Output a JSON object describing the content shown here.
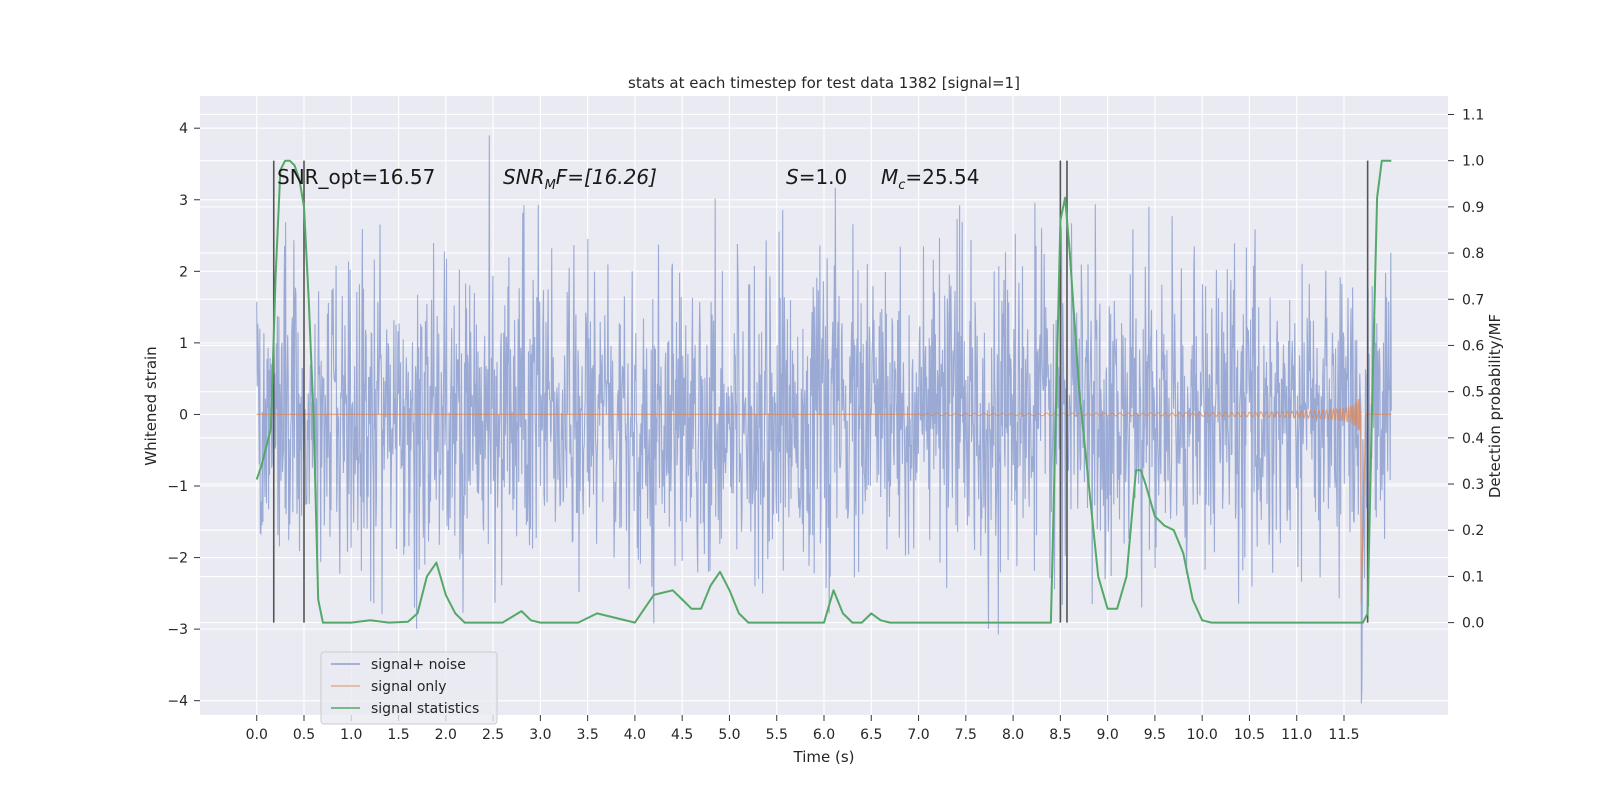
{
  "chart_data": {
    "type": "line",
    "title": "stats at each timestep for test data 1382 [signal=1]",
    "xlabel": "Time (s)",
    "ylabel": "Whitened strain",
    "y2label": "Detection probability/MF",
    "xlim": [
      -0.6,
      12.6
    ],
    "ylim": [
      -4.2,
      4.45
    ],
    "y2lim": [
      -0.2,
      1.14
    ],
    "grid": true,
    "xticks": [
      "0.0",
      "0.5",
      "1.0",
      "1.5",
      "2.0",
      "2.5",
      "3.0",
      "3.5",
      "4.0",
      "4.5",
      "5.0",
      "5.5",
      "6.0",
      "6.5",
      "7.0",
      "7.5",
      "8.0",
      "8.5",
      "9.0",
      "9.5",
      "10.0",
      "10.5",
      "11.0",
      "11.5"
    ],
    "yticks": [
      "4",
      "3",
      "2",
      "1",
      "0",
      "−1",
      "−2",
      "−3",
      "−4"
    ],
    "y2ticks": [
      "1.1",
      "1.0",
      "0.9",
      "0.8",
      "0.7",
      "0.6",
      "0.5",
      "0.4",
      "0.3",
      "0.2",
      "0.1",
      "0.0"
    ],
    "annotations": {
      "snr_opt": "SNR_opt=16.57",
      "snr_mf_label": "SNR",
      "snr_mf_sub": "M",
      "snr_mf_rest": "F=[16.26]",
      "s_label": "S",
      "s_rest": "=1.0",
      "mc_label": "M",
      "mc_sub": "c",
      "mc_rest": "=25.54"
    },
    "series": [
      {
        "name": "signal+ noise",
        "color": "#8c9fcf",
        "description_values": "noisy whitened strain, approximately uniform spread between about -3.3 and 3.3 over 0.0–12.0 s, peaks up to 4.1"
      },
      {
        "name": "signal only",
        "color": "#dd8452",
        "chirp": {
          "t_start": 7.0,
          "t_merge": 11.68,
          "t_end": 12.0,
          "amp_peak": 3.6
        }
      },
      {
        "name": "signal statistics",
        "color": "#55a868",
        "axis": "right",
        "x": [
          0.0,
          0.05,
          0.1,
          0.15,
          0.2,
          0.25,
          0.3,
          0.35,
          0.4,
          0.45,
          0.5,
          0.55,
          0.6,
          0.65,
          0.7,
          0.75,
          0.8,
          1.0,
          1.2,
          1.4,
          1.6,
          1.7,
          1.8,
          1.9,
          2.0,
          2.1,
          2.2,
          2.3,
          2.4,
          2.6,
          2.8,
          2.9,
          3.0,
          3.1,
          3.2,
          3.4,
          3.6,
          3.8,
          4.0,
          4.2,
          4.4,
          4.5,
          4.6,
          4.7,
          4.8,
          4.9,
          5.0,
          5.1,
          5.2,
          5.3,
          5.4,
          5.6,
          5.8,
          6.0,
          6.1,
          6.2,
          6.3,
          6.4,
          6.5,
          6.6,
          6.7,
          7.0,
          7.4,
          7.8,
          8.2,
          8.4,
          8.5,
          8.55,
          8.6,
          8.7,
          8.8,
          8.9,
          9.0,
          9.1,
          9.2,
          9.3,
          9.35,
          9.4,
          9.5,
          9.6,
          9.7,
          9.8,
          9.9,
          10.0,
          10.1,
          10.3,
          10.6,
          11.0,
          11.4,
          11.7,
          11.75,
          11.8,
          11.85,
          11.9,
          11.95,
          12.0
        ],
        "values": [
          0.31,
          0.34,
          0.38,
          0.42,
          0.75,
          0.98,
          1.0,
          1.0,
          0.99,
          0.96,
          0.9,
          0.7,
          0.45,
          0.05,
          0.0,
          0.0,
          0.0,
          0.0,
          0.005,
          0.0,
          0.002,
          0.02,
          0.1,
          0.13,
          0.06,
          0.02,
          0.0,
          0.0,
          0.0,
          0.0,
          0.025,
          0.005,
          0.0,
          0.0,
          0.0,
          0.0,
          0.02,
          0.01,
          0.0,
          0.06,
          0.07,
          0.05,
          0.03,
          0.03,
          0.08,
          0.11,
          0.07,
          0.02,
          0.0,
          0.0,
          0.0,
          0.0,
          0.0,
          0.0,
          0.07,
          0.02,
          0.0,
          0.0,
          0.02,
          0.005,
          0.0,
          0.0,
          0.0,
          0.0,
          0.0,
          0.0,
          0.87,
          0.92,
          0.8,
          0.5,
          0.3,
          0.1,
          0.03,
          0.03,
          0.1,
          0.33,
          0.33,
          0.3,
          0.23,
          0.21,
          0.2,
          0.15,
          0.05,
          0.005,
          0.0,
          0.0,
          0.0,
          0.0,
          0.0,
          0.0,
          0.02,
          0.5,
          0.92,
          1.0,
          1.0,
          1.0
        ]
      }
    ],
    "vertical_markers": [
      0.18,
      0.5,
      8.5,
      8.57,
      11.75
    ],
    "marker_range": [
      -0.0,
      1.0
    ],
    "legend": {
      "placement": "lower-left"
    },
    "colors": {
      "background": "#eaeaf2",
      "grid": "#ffffff",
      "markers": "#555555"
    }
  }
}
